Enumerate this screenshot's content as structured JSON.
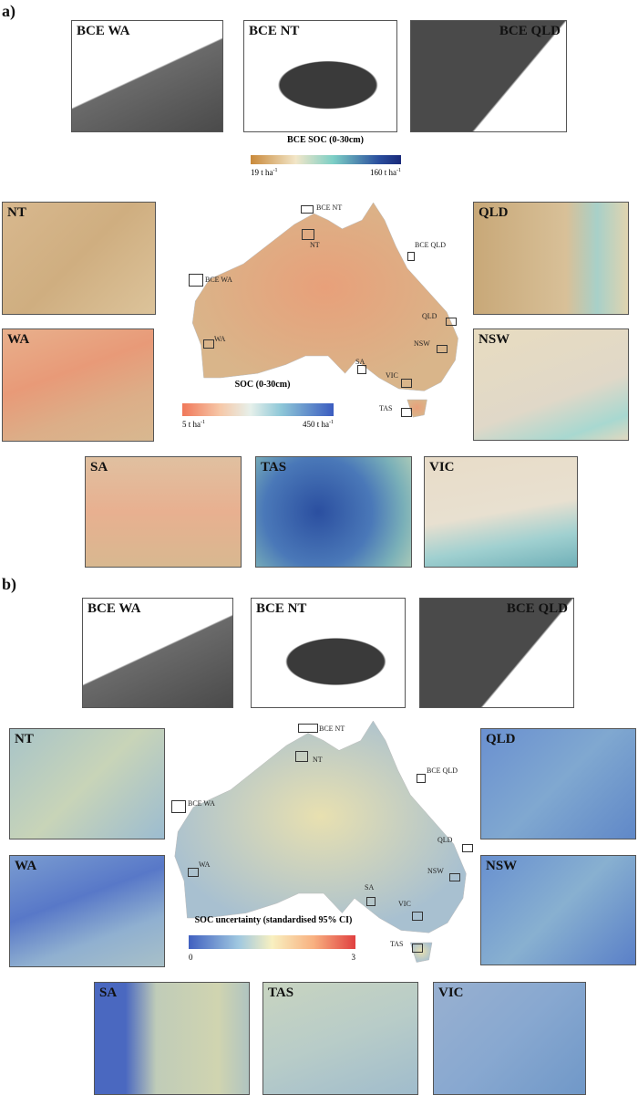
{
  "panels": [
    {
      "label": "a)",
      "bce_insets": [
        "BCE WA",
        "BCE NT",
        "BCE QLD"
      ],
      "bce_colorbar": {
        "title": "BCE SOC (0-30cm)",
        "ticks": [
          {
            "text": "19 t ha",
            "sup": "-1"
          },
          {
            "text": "160 t ha",
            "sup": "-1"
          }
        ]
      },
      "map_labels": [
        "BCE NT",
        "NT",
        "BCE QLD",
        "BCE WA",
        "QLD",
        "NSW",
        "WA",
        "SA",
        "VIC",
        "TAS"
      ],
      "colorbar": {
        "title": "SOC (0-30cm)",
        "ticks": [
          {
            "text": "5 t ha",
            "sup": "-1"
          },
          {
            "text": "450 t ha",
            "sup": "-1"
          }
        ]
      },
      "insets": [
        "NT",
        "WA",
        "QLD",
        "NSW",
        "SA",
        "TAS",
        "VIC"
      ]
    },
    {
      "label": "b)",
      "bce_insets": [
        "BCE WA",
        "BCE NT",
        "BCE QLD"
      ],
      "map_labels": [
        "BCE NT",
        "NT",
        "BCE QLD",
        "BCE WA",
        "QLD",
        "NSW",
        "WA",
        "SA",
        "VIC",
        "TAS"
      ],
      "colorbar": {
        "title": "SOC uncertainty (standardised 95% CI)",
        "ticks": [
          {
            "text": "0"
          },
          {
            "text": "3"
          }
        ]
      },
      "insets": [
        "NT",
        "WA",
        "QLD",
        "NSW",
        "SA",
        "TAS",
        "VIC"
      ]
    }
  ]
}
